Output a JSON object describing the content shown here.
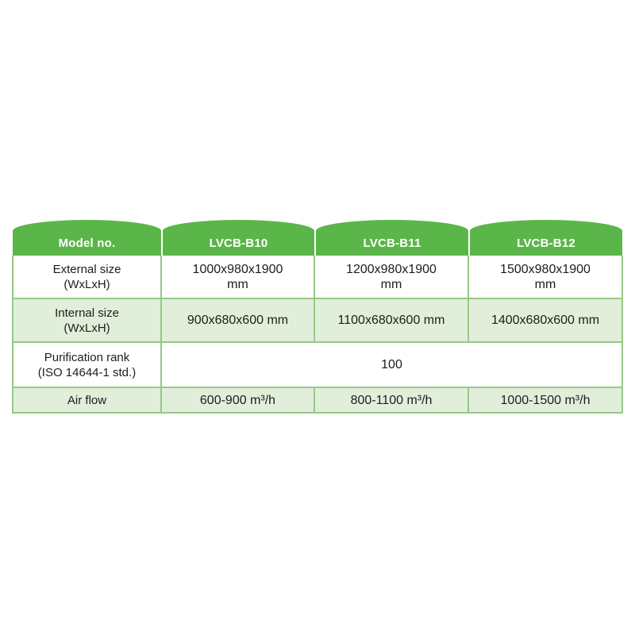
{
  "table": {
    "header": {
      "cells": [
        "Model no.",
        "LVCB-B10",
        "LVCB-B11",
        "LVCB-B12"
      ]
    },
    "rows": [
      {
        "label": "External size (WxLxH)",
        "values": [
          "1000x980x1900 mm",
          "1200x980x1900 mm",
          "1500x980x1900 mm"
        ]
      },
      {
        "label": "Internal size (WxLxH)",
        "values": [
          "900x680x600 mm",
          "1100x680x600 mm",
          "1400x680x600 mm"
        ]
      },
      {
        "label": "Purification rank (ISO 14644-1 std.)",
        "merged_value": "100"
      },
      {
        "label": "Air flow",
        "values": [
          "600-900 m³/h",
          "800-1100 m³/h",
          "1000-1500 m³/h"
        ]
      }
    ],
    "colors": {
      "header_green": "#5bb64a",
      "row_tint": "#e1efda",
      "row_white": "#ffffff",
      "border_green": "#96c887",
      "header_text": "#ffffff",
      "body_text": "#1d1d1b"
    }
  }
}
